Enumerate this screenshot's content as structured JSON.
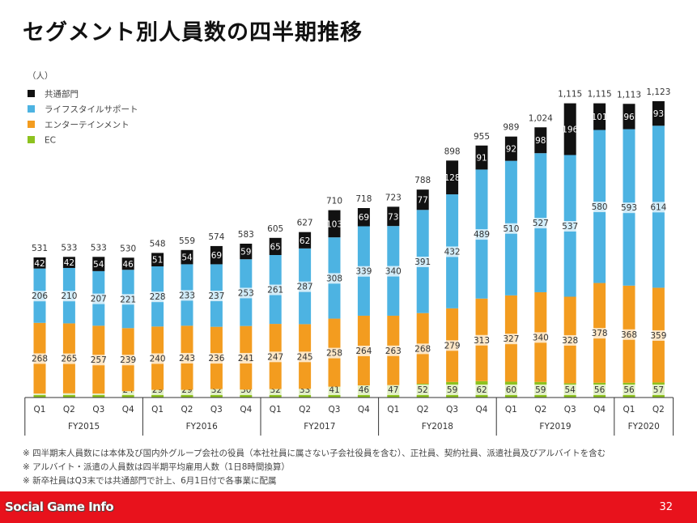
{
  "page": {
    "title": "セグメント別人員数の四半期推移",
    "page_number": "32",
    "watermark": "Social Game Info",
    "notes": [
      "※ 四半期末人員数には本体及び国内外グループ会社の役員（本社社員に属さない子会社役員を含む）、正社員、契約社員、派遣社員及びアルバイトを含む",
      "※ アルバイト・派遣の人員数は四半期平均雇用人数（1日8時間換算）",
      "※ 新卒社員はQ3末では共通部門で計上、6月1日付で各事業に配属"
    ]
  },
  "chart_data": {
    "type": "bar",
    "stacked": true,
    "unit_label": "（人）",
    "legend_position": "top-left",
    "categories": [
      "Q1",
      "Q2",
      "Q3",
      "Q4",
      "Q1",
      "Q2",
      "Q3",
      "Q4",
      "Q1",
      "Q2",
      "Q3",
      "Q4",
      "Q1",
      "Q2",
      "Q3",
      "Q4",
      "Q1",
      "Q2",
      "Q3",
      "Q4",
      "Q1",
      "Q2"
    ],
    "fiscal_years": [
      "FY2015",
      "FY2016",
      "FY2017",
      "FY2018",
      "FY2019",
      "FY2020"
    ],
    "fiscal_year_quarter_counts": [
      4,
      4,
      4,
      4,
      4,
      2
    ],
    "series": [
      {
        "name": "EC",
        "color": "#8dc21f",
        "values": [
          15,
          16,
          15,
          24,
          29,
          29,
          32,
          30,
          32,
          33,
          41,
          46,
          47,
          52,
          59,
          62,
          60,
          59,
          54,
          56,
          56,
          57
        ]
      },
      {
        "name": "エンターテインメント",
        "color": "#f39c1f",
        "values": [
          268,
          265,
          257,
          239,
          240,
          243,
          236,
          241,
          247,
          245,
          258,
          264,
          263,
          268,
          279,
          313,
          327,
          340,
          328,
          378,
          368,
          359
        ]
      },
      {
        "name": "ライフスタイルサポート",
        "color": "#4db3e2",
        "values": [
          206,
          210,
          207,
          221,
          228,
          233,
          237,
          253,
          261,
          287,
          308,
          339,
          340,
          391,
          432,
          489,
          510,
          527,
          537,
          580,
          593,
          614
        ]
      },
      {
        "name": "共通部門",
        "color": "#111111",
        "values": [
          42,
          42,
          54,
          46,
          51,
          54,
          69,
          59,
          65,
          62,
          103,
          69,
          73,
          77,
          128,
          91,
          92,
          98,
          196,
          101,
          96,
          93
        ]
      }
    ],
    "totals": [
      "531",
      "533",
      "533",
      "530",
      "548",
      "559",
      "574",
      "583",
      "605",
      "627",
      "710",
      "718",
      "723",
      "788",
      "898",
      "955",
      "989",
      "1,024",
      "1,115",
      "1,115",
      "1,113",
      "1,123"
    ],
    "ylim": [
      0,
      1123
    ]
  }
}
